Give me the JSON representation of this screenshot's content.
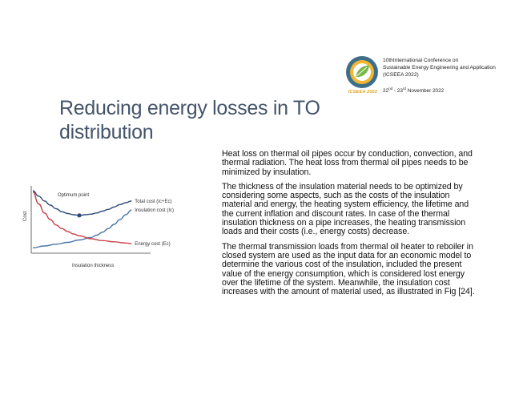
{
  "banner": {
    "logo_caption": "ICSEEA 2022",
    "line1": "10thInternational Conference on",
    "line2": "Sustainable Energy Engineering and Application",
    "line3": "(ICSEEA 2022)",
    "date_prefix": "22",
    "date_sup1": "nd",
    "date_mid": " - 23",
    "date_sup2": "rd",
    "date_suffix": " November 2022"
  },
  "slide": {
    "title": "Reducing energy losses in TO distribution",
    "paragraphs": [
      "Heat loss on thermal oil pipes occur by conduction, convection, and thermal radiation.  The heat loss from thermal oil pipes needs to be minimized by insulation.",
      "The thickness of the insulation material needs to be optimized by considering some aspects, such as the costs of the insulation material and energy, the heating system efficiency, the lifetime and the current inflation and discount rates. In case of the thermal insulation thickness on a pipe increases, the heating transmission loads and their costs (i.e., energy costs) decrease.",
      "The thermal transmission loads from thermal oil heater to reboiler in closed system are used as the input data for an economic model to determine the various cost of the insulation, included the present value of the energy consumption, which is considered lost energy over the lifetime of the system. Meanwhile, the insulation cost increases with the amount of material used, as illustrated in Fig [24]."
    ]
  },
  "chart_data": {
    "type": "line",
    "title": "",
    "xlabel": "Insulation thickness",
    "ylabel": "Cost",
    "annotation": "Optimum point",
    "optimum_x": 0.4,
    "xlim": [
      0,
      1
    ],
    "ylim": [
      0,
      1
    ],
    "series": [
      {
        "name": "Total cost (Ic+Ec)",
        "color": "#2e4a7a",
        "x": [
          0.0,
          0.05,
          0.1,
          0.15,
          0.2,
          0.25,
          0.3,
          0.35,
          0.4,
          0.45,
          0.5,
          0.55,
          0.6,
          0.65,
          0.7,
          0.75,
          0.8,
          0.85
        ],
        "y": [
          1.0,
          0.91,
          0.83,
          0.76,
          0.7,
          0.65,
          0.62,
          0.6,
          0.59,
          0.6,
          0.61,
          0.63,
          0.66,
          0.69,
          0.73,
          0.77,
          0.8,
          0.83
        ]
      },
      {
        "name": "Insulation cost (Ic)",
        "color": "#4a74a8",
        "x": [
          0.0,
          0.1,
          0.2,
          0.3,
          0.4,
          0.5,
          0.55,
          0.6,
          0.65,
          0.7,
          0.75,
          0.8,
          0.85
        ],
        "y": [
          0.05,
          0.08,
          0.11,
          0.14,
          0.18,
          0.22,
          0.26,
          0.31,
          0.37,
          0.44,
          0.52,
          0.6,
          0.68
        ]
      },
      {
        "name": "Energy cost (Ec)",
        "color": "#c9414a",
        "x": [
          0.0,
          0.05,
          0.1,
          0.15,
          0.2,
          0.25,
          0.3,
          0.35,
          0.4,
          0.5,
          0.6,
          0.7,
          0.8,
          0.85
        ],
        "y": [
          0.98,
          0.78,
          0.63,
          0.52,
          0.43,
          0.37,
          0.32,
          0.28,
          0.25,
          0.2,
          0.17,
          0.15,
          0.13,
          0.12
        ]
      }
    ]
  }
}
